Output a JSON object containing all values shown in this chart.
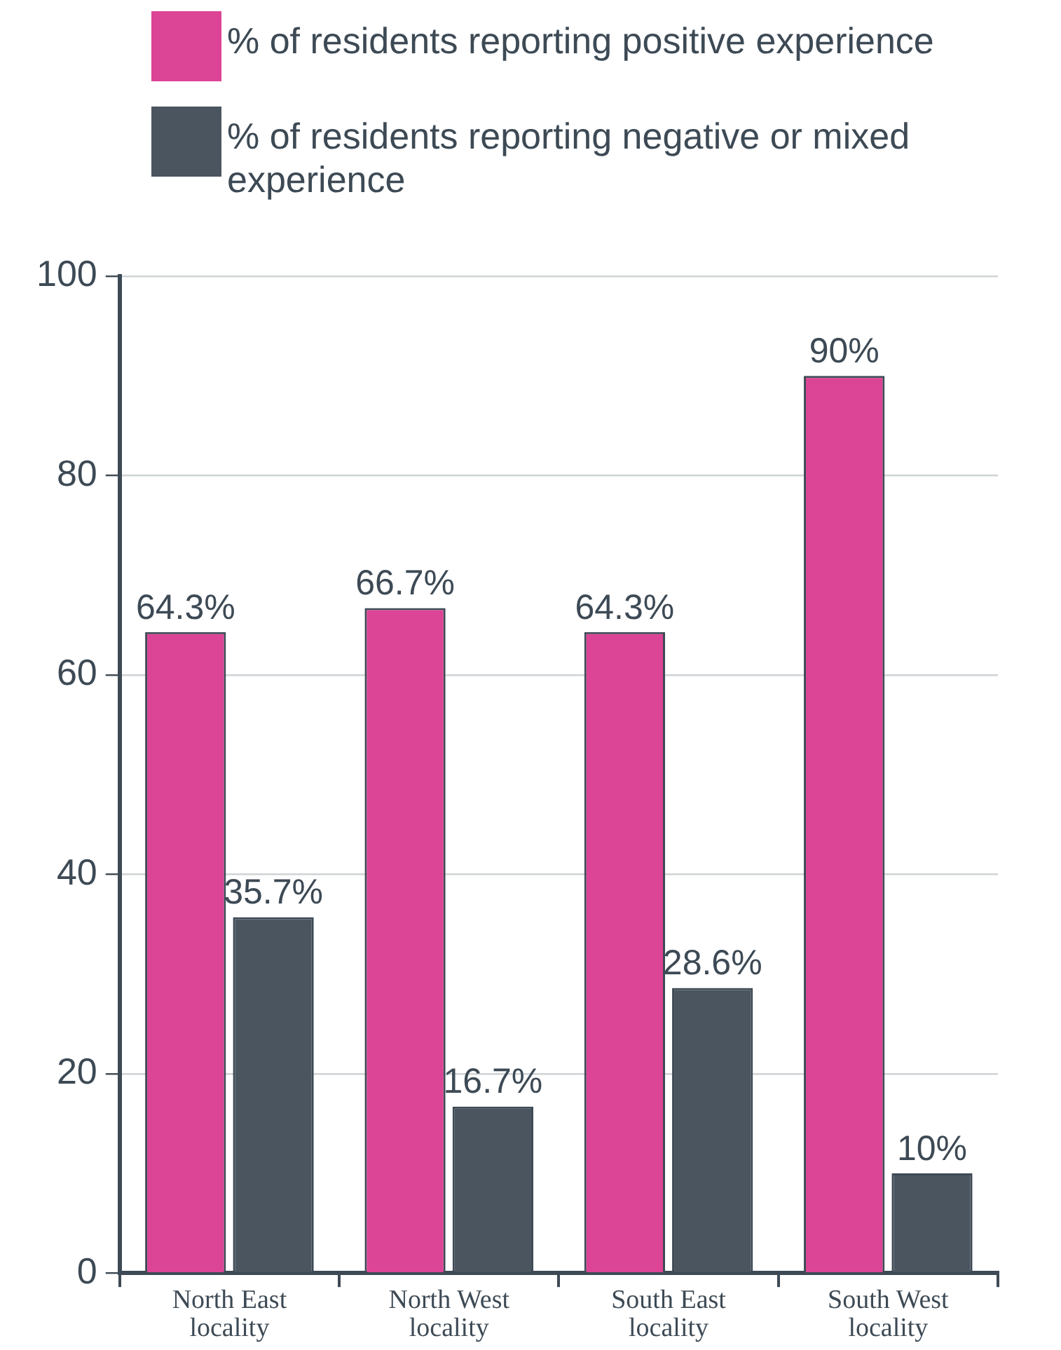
{
  "chart_data": {
    "type": "bar",
    "categories": [
      "North East locality",
      "North West locality",
      "South East locality",
      "South West locality"
    ],
    "series": [
      {
        "name": "% of residents reporting positive experience",
        "color": "#dc4496",
        "values": [
          64.3,
          66.7,
          64.3,
          90
        ],
        "value_labels": [
          "64.3%",
          "66.7%",
          "64.3%",
          "90%"
        ]
      },
      {
        "name": "% of residents reporting negative or mixed experience",
        "color": "#4a5560",
        "values": [
          35.7,
          16.7,
          28.6,
          10
        ],
        "value_labels": [
          "35.7%",
          "16.7%",
          "28.6%",
          "10%"
        ]
      }
    ],
    "ylim": [
      0,
      100
    ],
    "yticks": [
      0,
      20,
      40,
      60,
      80,
      100
    ],
    "grid": "y",
    "legend": "top"
  }
}
